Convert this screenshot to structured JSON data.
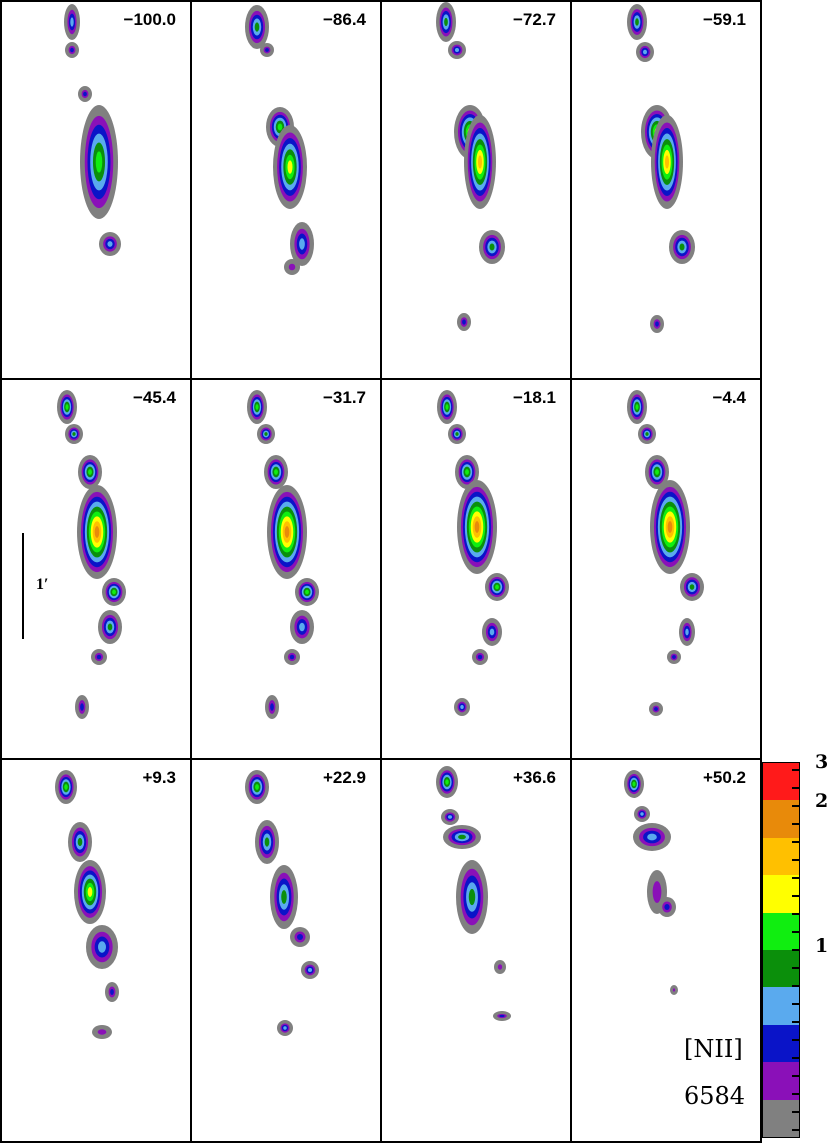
{
  "panels": [
    {
      "velocity": "−100.0"
    },
    {
      "velocity": "−86.4"
    },
    {
      "velocity": "−72.7"
    },
    {
      "velocity": "−59.1"
    },
    {
      "velocity": "−45.4"
    },
    {
      "velocity": "−31.7"
    },
    {
      "velocity": "−18.1"
    },
    {
      "velocity": "−4.4"
    },
    {
      "velocity": "+9.3"
    },
    {
      "velocity": "+22.9"
    },
    {
      "velocity": "+36.6"
    },
    {
      "velocity": "+50.2"
    }
  ],
  "scale_bar": {
    "label": "1′"
  },
  "colorbar": {
    "labels": [
      "3",
      "2",
      "1"
    ],
    "colors": [
      "#ff1a1a",
      "#e88a0a",
      "#ffc000",
      "#ffff00",
      "#10ee10",
      "#0b8f0b",
      "#5aaaee",
      "#0a14c8",
      "#8a10b8",
      "#808080"
    ]
  },
  "line_label": "[NII]",
  "line_wavelength": "6584"
}
